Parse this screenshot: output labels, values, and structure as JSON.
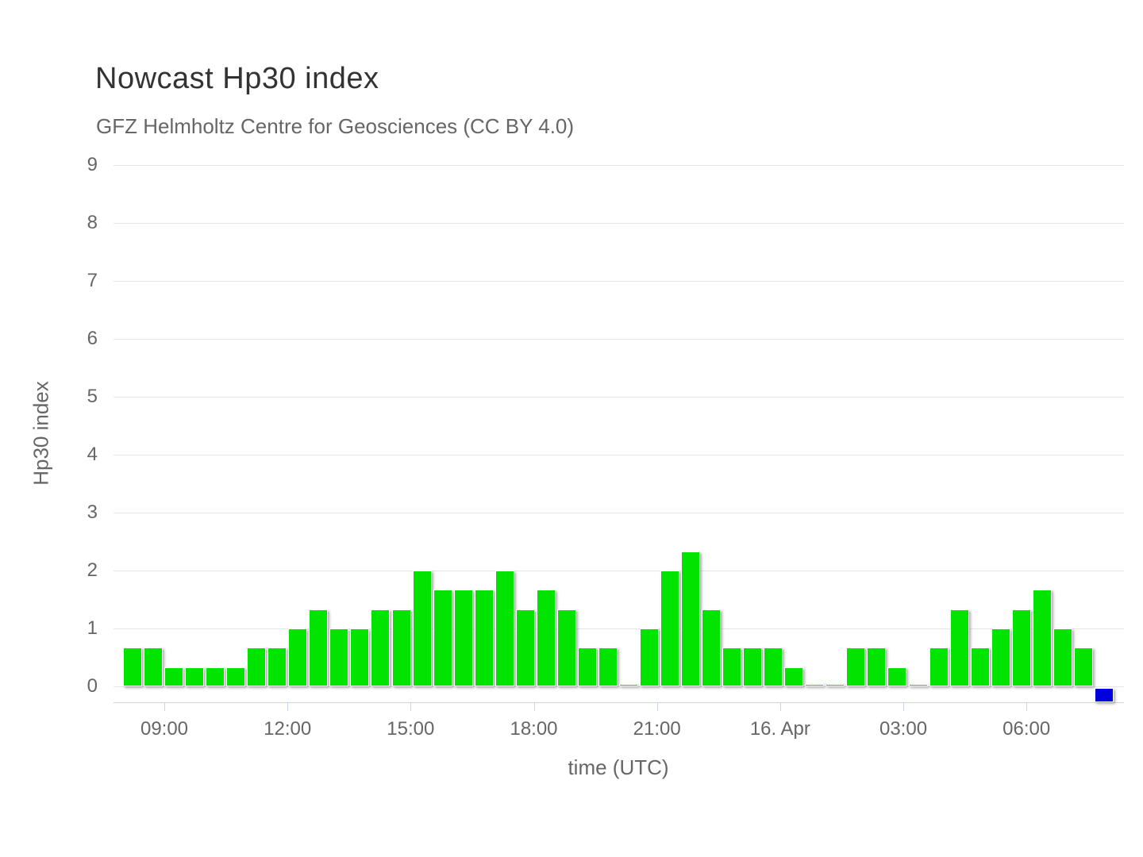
{
  "chart_data": {
    "type": "bar",
    "title": "Nowcast Hp30 index",
    "subtitle": "GFZ Helmholtz Centre for Geosciences (CC BY 4.0)",
    "xlabel": "time (UTC)",
    "ylabel": "Hp30 index",
    "ylim": [
      0,
      9
    ],
    "y_ticks": [
      0,
      1,
      2,
      3,
      4,
      5,
      6,
      7,
      8,
      9
    ],
    "x_tick_labels": [
      "09:00",
      "12:00",
      "15:00",
      "18:00",
      "21:00",
      "16. Apr",
      "03:00",
      "06:00"
    ],
    "grid": true,
    "legend": "none",
    "interval_minutes": 30,
    "categories": [
      "08:00",
      "08:30",
      "09:00",
      "09:30",
      "10:00",
      "10:30",
      "11:00",
      "11:30",
      "12:00",
      "12:30",
      "13:00",
      "13:30",
      "14:00",
      "14:30",
      "15:00",
      "15:30",
      "16:00",
      "16:30",
      "17:00",
      "17:30",
      "18:00",
      "18:30",
      "19:00",
      "19:30",
      "20:00",
      "20:30",
      "21:00",
      "21:30",
      "22:00",
      "22:30",
      "23:00",
      "23:30",
      "00:00",
      "00:30",
      "01:00",
      "01:30",
      "02:00",
      "02:30",
      "03:00",
      "03:30",
      "04:00",
      "04:30",
      "05:00",
      "05:30",
      "06:00",
      "06:30",
      "07:00",
      "07:30"
    ],
    "values": [
      0.667,
      0.667,
      0.333,
      0.333,
      0.333,
      0.333,
      0.667,
      0.667,
      1,
      1.333,
      1,
      1,
      1.333,
      1.333,
      2,
      1.667,
      1.667,
      1.667,
      2,
      1.333,
      1.667,
      1.333,
      0.667,
      0.667,
      0,
      1,
      2,
      2.333,
      1.333,
      0.667,
      0.667,
      0.667,
      0.333,
      0,
      0,
      0.667,
      0.667,
      0.333,
      0,
      0.667,
      1.333,
      0.667,
      1,
      1.333,
      1.667,
      1,
      0.667,
      -1
    ],
    "latest_index": 47,
    "latest_note": "most recent interval drawn as blue marker below the zero line",
    "colors": {
      "bar": "#00e400",
      "latest_bar": "#0000dd",
      "gridline": "#e6e6e6",
      "axis_line": "#ccd6eb",
      "label_text": "#666666",
      "title_text": "#333333",
      "background": "#ffffff"
    }
  }
}
